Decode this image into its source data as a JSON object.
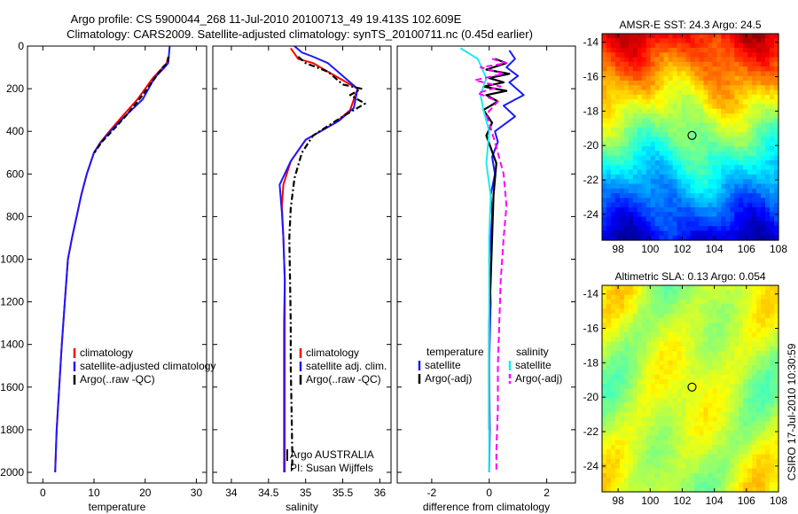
{
  "titles": {
    "line1": "Argo profile: CS 5900044_268 11-Jul-2010 20100713_49 19.413S 102.609E",
    "line2": "Climatology: CARS2009. Satellite-adjusted climatology: synTS_20100711.nc (0.45d earlier)"
  },
  "footer_text": "CSIRO 17-Jul-2010 10:30:59",
  "colors": {
    "red": "#ff0000",
    "blue": "#1a1aff",
    "black": "#000000",
    "cyan": "#1de9f0",
    "magenta": "#ff00ff"
  },
  "chart_data": [
    {
      "id": "temperature",
      "type": "line",
      "xlabel": "temperature",
      "xlim": [
        -3,
        32
      ],
      "ylim": [
        2050,
        0
      ],
      "xticks": [
        0,
        10,
        20,
        30
      ],
      "yticks": [
        0,
        200,
        400,
        600,
        800,
        1000,
        1200,
        1400,
        1600,
        1800,
        2000
      ],
      "yticklabels": [
        "0",
        "200",
        "400",
        "600",
        "800",
        "1000",
        "1200",
        "1400",
        "1600",
        "1800",
        "2000"
      ],
      "legend": [
        "climatology",
        "satellite-adjusted climatology",
        "Argo(..raw -QC)"
      ],
      "series": [
        {
          "name": "climatology",
          "color": "red",
          "dash": "",
          "x": [
            24.5,
            24.2,
            23.5,
            21.5,
            18.5,
            15.5,
            13,
            11.3,
            10,
            8.6,
            7.5,
            6.6,
            5.7,
            4.9,
            4.3,
            3.7,
            3.2,
            2.7,
            2.4
          ],
          "y": [
            50,
            80,
            100,
            150,
            250,
            330,
            400,
            450,
            500,
            600,
            700,
            800,
            900,
            1000,
            1200,
            1400,
            1600,
            1800,
            2000
          ]
        },
        {
          "name": "satellite-adjusted climatology",
          "color": "blue",
          "dash": "",
          "x": [
            24.8,
            24.5,
            23.8,
            21.8,
            19.5,
            16,
            13.2,
            11.4,
            10,
            8.6,
            7.5,
            6.6,
            5.7,
            4.9,
            4.3,
            3.7,
            3.2,
            2.7,
            2.4
          ],
          "y": [
            0,
            80,
            100,
            150,
            250,
            330,
            400,
            450,
            500,
            600,
            700,
            800,
            900,
            1000,
            1200,
            1400,
            1600,
            1800,
            2000
          ]
        },
        {
          "name": "Argo(..raw -QC)",
          "color": "black",
          "dash": "6,3",
          "x": [
            24.6,
            24.3,
            23.4,
            22.5,
            19.5,
            16.5,
            13.5,
            11.5,
            10.1
          ],
          "y": [
            50,
            80,
            100,
            130,
            230,
            320,
            400,
            450,
            500
          ]
        }
      ]
    },
    {
      "id": "salinity",
      "type": "line",
      "xlabel": "salinity",
      "xlim": [
        33.75,
        36.15
      ],
      "ylim": [
        2050,
        0
      ],
      "xticks": [
        34,
        34.5,
        35,
        35.5,
        36
      ],
      "legend": [
        "climatology",
        "satellite adj. clim.",
        "Argo(..raw -QC)"
      ],
      "annotations": [
        "Argo AUSTRALIA",
        "PI: Susan Wijffels"
      ],
      "series": [
        {
          "name": "climatology",
          "color": "red",
          "dash": "",
          "x": [
            34.8,
            34.9,
            35.1,
            35.3,
            35.5,
            35.7,
            35.6,
            35.4,
            35.0,
            34.8,
            34.7,
            34.68,
            34.7,
            34.72,
            34.72,
            34.72,
            34.72,
            34.72,
            34.72
          ],
          "y": [
            10,
            60,
            80,
            120,
            160,
            200,
            300,
            360,
            440,
            540,
            650,
            750,
            900,
            1100,
            1300,
            1500,
            1700,
            1900,
            2000
          ]
        },
        {
          "name": "satellite adj. clim.",
          "color": "blue",
          "dash": "",
          "x": [
            34.85,
            34.95,
            35.1,
            35.3,
            35.5,
            35.7,
            35.65,
            35.45,
            35.0,
            34.8,
            34.65,
            34.68,
            34.7,
            34.72,
            34.71,
            34.71,
            34.71,
            34.71,
            34.71
          ],
          "y": [
            0,
            30,
            50,
            80,
            140,
            200,
            290,
            350,
            440,
            540,
            650,
            780,
            900,
            1100,
            1300,
            1500,
            1700,
            1900,
            2000
          ]
        },
        {
          "name": "Argo(..raw -QC)",
          "color": "black",
          "dash": "7,3,2,3",
          "x": [
            34.9,
            35.0,
            35.3,
            35.5,
            35.75,
            35.6,
            35.8,
            35.5,
            35.1,
            34.95,
            34.85,
            34.8,
            34.78,
            34.79,
            34.8,
            34.8,
            34.81,
            34.82,
            34.82
          ],
          "y": [
            50,
            80,
            120,
            180,
            200,
            230,
            270,
            330,
            420,
            500,
            620,
            760,
            900,
            1100,
            1300,
            1500,
            1700,
            1900,
            2000
          ]
        }
      ]
    },
    {
      "id": "difference",
      "type": "line",
      "xlabel": "difference from climatology",
      "xlim": [
        -3.2,
        3.0
      ],
      "ylim": [
        2050,
        0
      ],
      "xticks": [
        -2,
        0,
        2
      ],
      "legend_left": [
        "temperature",
        "satellite",
        "Argo(-adj)"
      ],
      "legend_right": [
        "salinity",
        "satellite",
        "Argo(-adj)"
      ],
      "series": [
        {
          "name": "temperature satellite",
          "color": "blue",
          "dash": "",
          "x": [
            0.7,
            0.9,
            0.6,
            1.0,
            0.7,
            1.2,
            0.5,
            0.9,
            0.2,
            0.3,
            0.1,
            0.2,
            0.05,
            0.1,
            0.0,
            0.05,
            0.0,
            0.02,
            0.0
          ],
          "y": [
            20,
            60,
            100,
            140,
            170,
            230,
            280,
            330,
            400,
            450,
            520,
            600,
            700,
            800,
            1000,
            1200,
            1500,
            1800,
            2000
          ]
        },
        {
          "name": "temperature Argo(-adj)",
          "color": "black",
          "dash": "",
          "x": [
            0.2,
            0.6,
            -0.1,
            0.7,
            0.0,
            0.5,
            -0.2,
            0.6,
            -0.1,
            0.3,
            -0.2,
            0.1,
            -0.1,
            0.25,
            0.15,
            0.1,
            0.05,
            0.0,
            0.0,
            0.0
          ],
          "y": [
            60,
            80,
            110,
            130,
            150,
            170,
            190,
            210,
            230,
            260,
            300,
            360,
            420,
            550,
            700,
            900,
            1100,
            1300,
            1500,
            1800
          ]
        },
        {
          "name": "salinity satellite",
          "color": "cyan",
          "dash": "",
          "x": [
            -1.0,
            -0.4,
            -0.1,
            -0.3,
            -0.2,
            0.0,
            -0.1,
            0.05,
            0.0,
            0.0,
            0.0,
            0.0
          ],
          "y": [
            10,
            60,
            150,
            230,
            300,
            400,
            550,
            700,
            900,
            1200,
            1600,
            2000
          ]
        },
        {
          "name": "salinity Argo(-adj)",
          "color": "magenta",
          "dash": "7,4",
          "x": [
            0.1,
            0.6,
            -0.3,
            0.5,
            -0.5,
            0.4,
            -0.4,
            0.3,
            -0.1,
            0.2,
            0.5,
            0.6,
            0.5,
            0.4,
            0.35,
            0.3,
            0.3,
            0.25,
            0.25
          ],
          "y": [
            60,
            80,
            100,
            130,
            160,
            190,
            220,
            260,
            320,
            450,
            600,
            750,
            900,
            1100,
            1300,
            1500,
            1700,
            1900,
            2000
          ]
        }
      ]
    },
    {
      "id": "sst_map",
      "type": "heatmap",
      "title": "AMSR-E SST: 24.3 Argo: 24.5",
      "xlim": [
        97,
        108
      ],
      "ylim": [
        -25.5,
        -13.5
      ],
      "xticks": [
        98,
        100,
        102,
        104,
        106,
        108
      ],
      "yticks": [
        -14,
        -16,
        -18,
        -20,
        -22,
        -24
      ],
      "marker": {
        "lon": 102.609,
        "lat": -19.413
      }
    },
    {
      "id": "sla_map",
      "type": "heatmap",
      "title": "Altimetric SLA: 0.13 Argo: 0.054",
      "xlim": [
        97,
        108
      ],
      "ylim": [
        -25.5,
        -13.5
      ],
      "xticks": [
        98,
        100,
        102,
        104,
        106,
        108
      ],
      "yticks": [
        -14,
        -16,
        -18,
        -20,
        -22,
        -24
      ],
      "marker": {
        "lon": 102.609,
        "lat": -19.413
      }
    }
  ]
}
